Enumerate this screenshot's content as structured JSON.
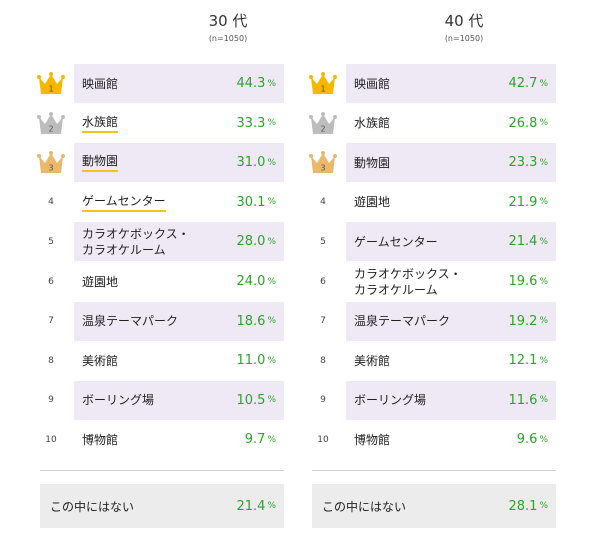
{
  "chart_data": [
    {
      "type": "table",
      "title": "30 代",
      "subtitle": "(n=1050)",
      "unit": "%",
      "rows": [
        {
          "rank": "1",
          "label": "映画館",
          "value": "44.3",
          "shaded": true,
          "underline": false
        },
        {
          "rank": "2",
          "label": "水族館",
          "value": "33.3",
          "shaded": false,
          "underline": true
        },
        {
          "rank": "3",
          "label": "動物園",
          "value": "31.0",
          "shaded": true,
          "underline": true
        },
        {
          "rank": "4",
          "label": "ゲームセンター",
          "value": "30.1",
          "shaded": false,
          "underline": true
        },
        {
          "rank": "5",
          "label": "カラオケボックス・\nカラオケルーム",
          "value": "28.0",
          "shaded": true,
          "underline": false
        },
        {
          "rank": "6",
          "label": "遊園地",
          "value": "24.0",
          "shaded": false,
          "underline": false
        },
        {
          "rank": "7",
          "label": "温泉テーマパーク",
          "value": "18.6",
          "shaded": true,
          "underline": false
        },
        {
          "rank": "8",
          "label": "美術館",
          "value": "11.0",
          "shaded": false,
          "underline": false
        },
        {
          "rank": "9",
          "label": "ボーリング場",
          "value": "10.5",
          "shaded": true,
          "underline": false
        },
        {
          "rank": "10",
          "label": "博物館",
          "value": "9.7",
          "shaded": false,
          "underline": false
        }
      ],
      "footer": {
        "label": "この中にはない",
        "value": "21.4"
      }
    },
    {
      "type": "table",
      "title": "40 代",
      "subtitle": "(n=1050)",
      "unit": "%",
      "rows": [
        {
          "rank": "1",
          "label": "映画館",
          "value": "42.7",
          "shaded": true,
          "underline": false
        },
        {
          "rank": "2",
          "label": "水族館",
          "value": "26.8",
          "shaded": false,
          "underline": false
        },
        {
          "rank": "3",
          "label": "動物園",
          "value": "23.3",
          "shaded": true,
          "underline": false
        },
        {
          "rank": "4",
          "label": "遊園地",
          "value": "21.9",
          "shaded": false,
          "underline": false
        },
        {
          "rank": "5",
          "label": "ゲームセンター",
          "value": "21.4",
          "shaded": true,
          "underline": false
        },
        {
          "rank": "6",
          "label": "カラオケボックス・\nカラオケルーム",
          "value": "19.6",
          "shaded": false,
          "underline": false
        },
        {
          "rank": "7",
          "label": "温泉テーマパーク",
          "value": "19.2",
          "shaded": true,
          "underline": false
        },
        {
          "rank": "8",
          "label": "美術館",
          "value": "12.1",
          "shaded": false,
          "underline": false
        },
        {
          "rank": "9",
          "label": "ボーリング場",
          "value": "11.6",
          "shaded": true,
          "underline": false
        },
        {
          "rank": "10",
          "label": "博物館",
          "value": "9.6",
          "shaded": false,
          "underline": false
        }
      ],
      "footer": {
        "label": "この中にはない",
        "value": "28.1"
      }
    }
  ],
  "crown_colors": {
    "1": "#f5b700",
    "2": "#bdbdbd",
    "3": "#e8b96a"
  },
  "crown_icons": {
    "1": "gold-crown-icon",
    "2": "silver-crown-icon",
    "3": "bronze-crown-icon"
  }
}
